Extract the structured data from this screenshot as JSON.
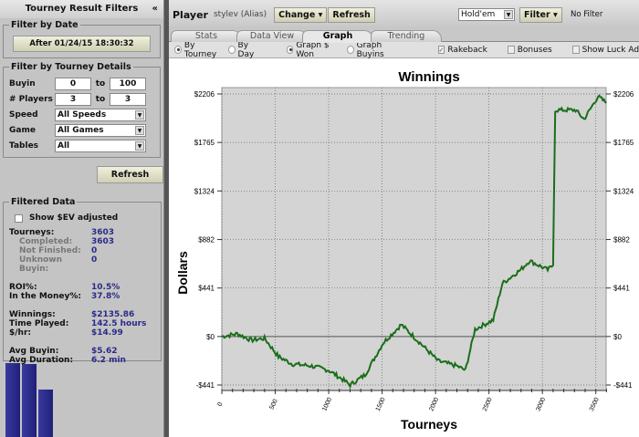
{
  "sidebar": {
    "title": "Tourney Result Filters",
    "collapse": "«",
    "date": {
      "legend": "Filter by Date",
      "button": "After 01/24/15 18:30:32"
    },
    "details": {
      "legend": "Filter by Tourney Details",
      "buyin_label": "Buyin",
      "buyin_from": "0",
      "buyin_to": "100",
      "players_label": "# Players",
      "players_from": "3",
      "players_to": "3",
      "to": "to",
      "speed_label": "Speed",
      "speed": "All Speeds",
      "game_label": "Game",
      "game": "All Games",
      "tables_label": "Tables",
      "tables": "All"
    },
    "refresh": "Refresh",
    "filtered": {
      "legend": "Filtered Data",
      "ev_label": "Show $EV adjusted",
      "tourneys_k": "Tourneys:",
      "tourneys_v": "3603",
      "completed_k": "Completed:",
      "completed_v": "3603",
      "nf_k": "Not Finished:",
      "nf_v": "0",
      "ub_k": "Unknown Buyin:",
      "ub_v": "0",
      "roi_k": "ROI%:",
      "roi_v": "10.5%",
      "itm_k": "In the Money%:",
      "itm_v": "37.8%",
      "win_k": "Winnings:",
      "win_v": "$2135.86",
      "time_k": "Time Played:",
      "time_v": "142.5 hours",
      "hr_k": "$/hr:",
      "hr_v": "$14.99",
      "ab_k": "Avg Buyin:",
      "ab_v": "$5.62",
      "ad_k": "Avg Duration:",
      "ad_v": "6.2 min"
    }
  },
  "toolbar": {
    "player_label": "Player",
    "player": "stylev (Alias)",
    "change": "Change",
    "refresh": "Refresh",
    "game": "Hold'em",
    "filter": "Filter",
    "filter_status": "No Filter"
  },
  "tabs": [
    "Stats",
    "Data View",
    "Graph",
    "Trending"
  ],
  "options": {
    "by_tourney": "By Tourney",
    "by_day": "By Day",
    "graph_won": "Graph $ Won",
    "graph_buyins": "Graph Buyins",
    "rakeback": "Rakeback",
    "bonuses": "Bonuses",
    "luck": "Show Luck Ad"
  },
  "colors": {
    "line": "#1a6e1a",
    "plot_bg": "#d4d4d4",
    "bars": "#2a2a8a"
  },
  "chart_data": {
    "type": "line",
    "title": "Winnings",
    "xlabel": "Tourneys",
    "ylabel": "Dollars",
    "xlim": [
      0,
      3600
    ],
    "ylim": [
      -441,
      2206
    ],
    "xticks": [
      0,
      500,
      1000,
      1500,
      2000,
      2500,
      3000,
      3500
    ],
    "yticks": [
      -441,
      0,
      441,
      882,
      1324,
      1765,
      2206
    ],
    "ytick_labels": [
      "-$441",
      "$0",
      "$441",
      "$882",
      "$1324",
      "$1765",
      "$2206"
    ],
    "x": [
      0,
      145,
      275,
      400,
      530,
      660,
      830,
      1000,
      1130,
      1200,
      1340,
      1510,
      1680,
      1855,
      2025,
      2195,
      2280,
      2370,
      2540,
      2625,
      2795,
      2880,
      3050,
      3100,
      3120,
      3310,
      3390,
      3520,
      3600
    ],
    "y": [
      0,
      25,
      -33,
      -17,
      -183,
      -250,
      -266,
      -307,
      -390,
      -441,
      -349,
      -58,
      108,
      -58,
      -224,
      -266,
      -307,
      66,
      150,
      482,
      606,
      689,
      606,
      648,
      2060,
      2060,
      1976,
      2183,
      2125
    ]
  }
}
